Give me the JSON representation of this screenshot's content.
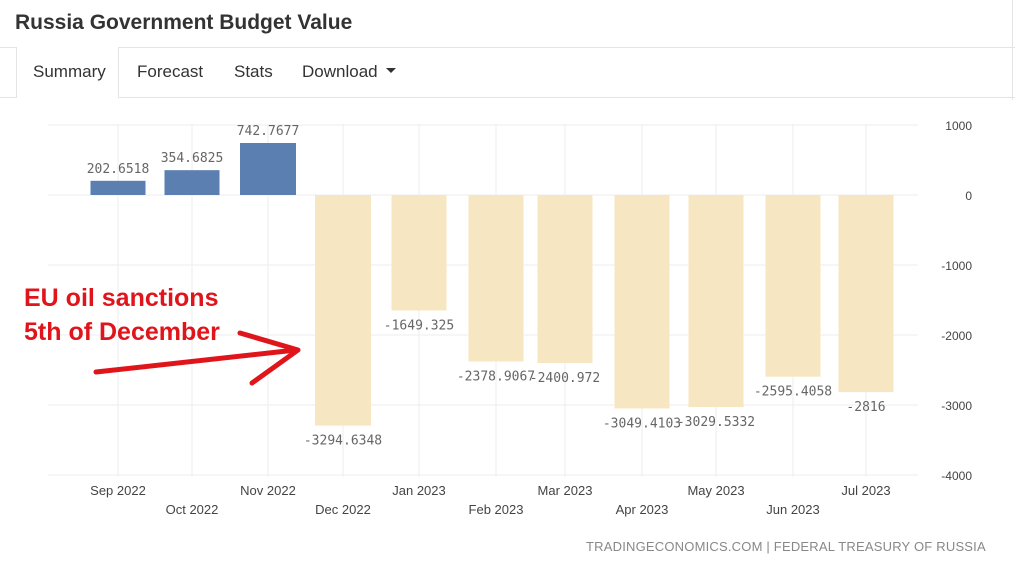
{
  "page": {
    "title": "Russia Government Budget Value",
    "tabs": [
      {
        "label": "Summary",
        "active": true
      },
      {
        "label": "Forecast",
        "active": false
      },
      {
        "label": "Stats",
        "active": false
      },
      {
        "label": "Download",
        "active": false,
        "has_dropdown": true
      }
    ],
    "source": "TRADINGECONOMICS.COM | FEDERAL TREASURY OF RUSSIA",
    "annotation": {
      "line1": "EU oil sanctions",
      "line2": "5th of December",
      "color": "#e0151c",
      "arrow_icon": "arrow-right-icon"
    }
  },
  "chart_data": {
    "type": "bar",
    "title": "",
    "xlabel": "",
    "ylabel": "",
    "categories": [
      "Sep 2022",
      "Oct 2022",
      "Nov 2022",
      "Dec 2022",
      "Jan 2023",
      "Feb 2023",
      "Mar 2023",
      "Apr 2023",
      "May 2023",
      "Jun 2023",
      "Jul 2023"
    ],
    "values": [
      202.6518,
      354.6825,
      742.7677,
      -3294.6348,
      -1649.325,
      -2378.9067,
      -2400.972,
      -3049.4103,
      -3029.5332,
      -2595.4058,
      -2816
    ],
    "value_labels": [
      "202.6518",
      "354.6825",
      "742.7677",
      "-3294.6348",
      "-1649.325",
      "-2378.9067",
      "-2400.972",
      "-3049.4103",
      "-3029.5332",
      "-2595.4058",
      "-2816"
    ],
    "ylim": [
      -4000,
      1000
    ],
    "yticks": [
      1000,
      0,
      -1000,
      -2000,
      -3000,
      -4000
    ],
    "y_axis_side": "right",
    "grid": true,
    "legend": "none",
    "colors": {
      "positive": "#5a7fb0",
      "negative": "#f7e6c2",
      "grid": "#eeeeee",
      "label": "#666666"
    }
  }
}
